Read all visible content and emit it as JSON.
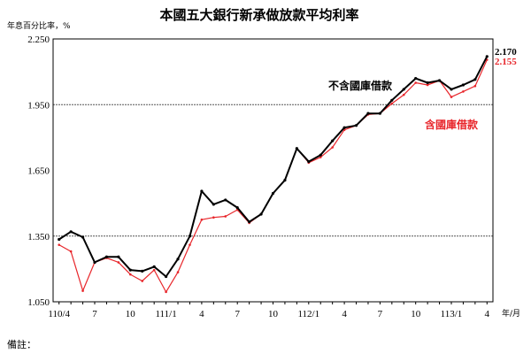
{
  "chart_data": {
    "type": "line",
    "title": "本國五大銀行新承做放款平均利率",
    "ylabel": "年息百分比率，%",
    "xlabel": "年/月",
    "ylim": [
      1.05,
      2.25
    ],
    "yticks": [
      "1.050",
      "1.350",
      "1.650",
      "1.950",
      "2.250"
    ],
    "ytick_values": [
      1.05,
      1.35,
      1.65,
      1.95,
      2.25
    ],
    "dashed_gridlines": [
      1.35,
      1.95
    ],
    "xtick_labels": [
      "110/4",
      "7",
      "10",
      "111/1",
      "4",
      "7",
      "10",
      "112/1",
      "4",
      "7",
      "10",
      "113/1",
      "4"
    ],
    "xtick_index": [
      0,
      3,
      6,
      9,
      12,
      15,
      18,
      21,
      24,
      27,
      30,
      33,
      36
    ],
    "x": [
      "110/4",
      "110/5",
      "110/6",
      "110/7",
      "110/8",
      "110/9",
      "110/10",
      "110/11",
      "110/12",
      "111/1",
      "111/2",
      "111/3",
      "111/4",
      "111/5",
      "111/6",
      "111/7",
      "111/8",
      "111/9",
      "111/10",
      "111/11",
      "111/12",
      "112/1",
      "112/2",
      "112/3",
      "112/4",
      "112/5",
      "112/6",
      "112/7",
      "112/8",
      "112/9",
      "112/10",
      "112/11",
      "112/12",
      "113/1",
      "113/2",
      "113/3",
      "113/4"
    ],
    "series": [
      {
        "name": "不含國庫借款",
        "color": "#000000",
        "values": [
          1.335,
          1.37,
          1.345,
          1.23,
          1.255,
          1.255,
          1.195,
          1.19,
          1.21,
          1.165,
          1.245,
          1.35,
          1.555,
          1.495,
          1.515,
          1.48,
          1.415,
          1.45,
          1.545,
          1.605,
          1.75,
          1.69,
          1.72,
          1.785,
          1.845,
          1.855,
          1.91,
          1.91,
          1.97,
          2.02,
          2.07,
          2.05,
          2.06,
          2.02,
          2.04,
          2.065,
          2.17
        ]
      },
      {
        "name": "含國庫借款",
        "color": "#e8262b",
        "values": [
          1.31,
          1.28,
          1.1,
          1.23,
          1.25,
          1.23,
          1.175,
          1.145,
          1.195,
          1.095,
          1.185,
          1.31,
          1.425,
          1.435,
          1.44,
          1.47,
          1.41,
          1.45,
          1.545,
          1.605,
          1.75,
          1.685,
          1.71,
          1.755,
          1.835,
          1.855,
          1.905,
          1.91,
          1.955,
          1.995,
          2.05,
          2.04,
          2.06,
          1.985,
          2.01,
          2.035,
          2.155
        ]
      }
    ],
    "end_labels": [
      "2.170",
      "2.155"
    ],
    "annotations": [
      "不含國庫借款",
      "含國庫借款"
    ]
  },
  "footer": {
    "note": "備註："
  }
}
